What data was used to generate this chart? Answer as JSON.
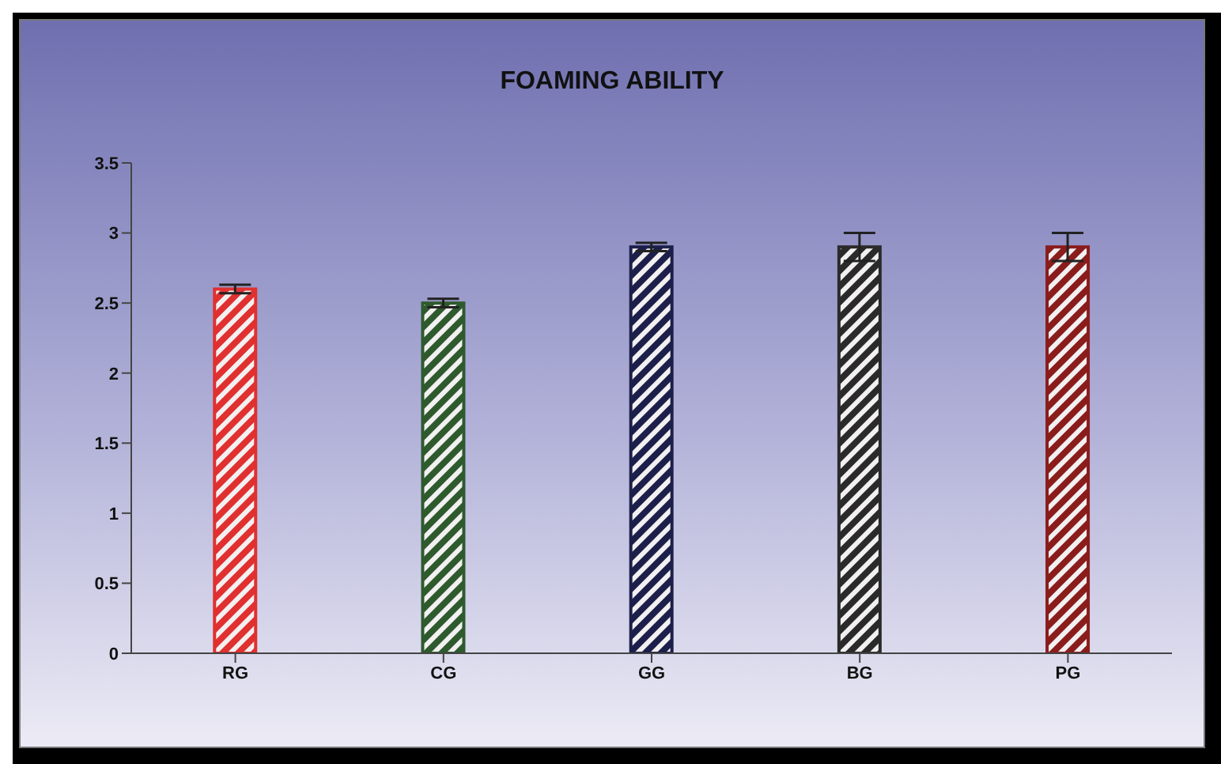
{
  "chart_data": {
    "type": "bar",
    "title": "FOAMING ABILITY",
    "categories": [
      "RG",
      "CG",
      "GG",
      "BG",
      "PG"
    ],
    "values": [
      2.6,
      2.5,
      2.9,
      2.9,
      2.9
    ],
    "errors": [
      0.03,
      0.03,
      0.03,
      0.1,
      0.1
    ],
    "colors": [
      "#e03030",
      "#2e5a2e",
      "#1c1f4a",
      "#2a2a2a",
      "#8a1c1c"
    ],
    "ylim": [
      0,
      3.5
    ],
    "yticks": [
      0,
      0.5,
      1,
      1.5,
      2,
      2.5,
      3,
      3.5
    ],
    "grid": false,
    "legend": false
  }
}
